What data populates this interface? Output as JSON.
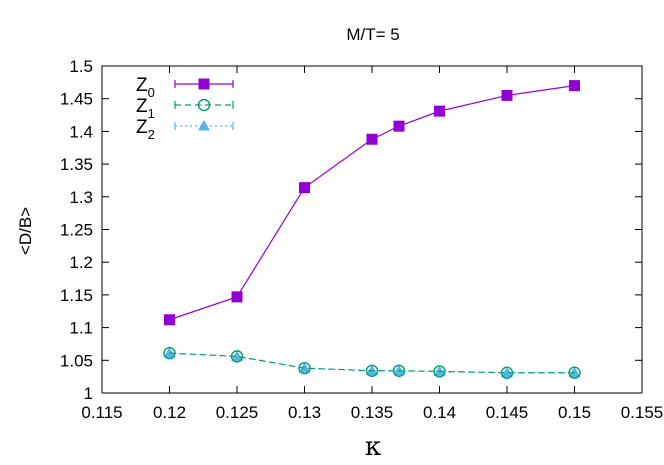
{
  "chart_data": {
    "type": "line",
    "title": "M/T= 5",
    "xlabel": "κ",
    "ylabel": "<D/B>",
    "xlim": [
      0.115,
      0.155
    ],
    "ylim": [
      1.0,
      1.5
    ],
    "x_ticks": [
      "0.115",
      "0.12",
      "0.125",
      "0.13",
      "0.135",
      "0.14",
      "0.145",
      "0.15",
      "0.155"
    ],
    "y_ticks": [
      "1",
      "1.05",
      "1.1",
      "1.15",
      "1.2",
      "1.25",
      "1.3",
      "1.35",
      "1.4",
      "1.45",
      "1.5"
    ],
    "grid": false,
    "legend_position": "top-left",
    "series": [
      {
        "name": "Z",
        "subscript": "0",
        "color": "#9400d3",
        "marker": "filled-square",
        "line_style": "solid",
        "x": [
          0.12,
          0.125,
          0.13,
          0.135,
          0.137,
          0.14,
          0.145,
          0.15
        ],
        "y": [
          1.112,
          1.147,
          1.314,
          1.388,
          1.408,
          1.431,
          1.455,
          1.47
        ]
      },
      {
        "name": "Z",
        "subscript": "1",
        "color": "#009e73",
        "marker": "open-circle",
        "line_style": "dashed",
        "x": [
          0.12,
          0.125,
          0.13,
          0.135,
          0.137,
          0.14,
          0.145,
          0.15
        ],
        "y": [
          1.061,
          1.056,
          1.038,
          1.034,
          1.034,
          1.033,
          1.031,
          1.031
        ]
      },
      {
        "name": "Z",
        "subscript": "2",
        "color": "#56b4e9",
        "marker": "filled-triangle",
        "line_style": "dotted",
        "x": [
          0.12,
          0.125,
          0.13,
          0.135,
          0.137,
          0.14,
          0.145,
          0.15
        ],
        "y": [
          1.061,
          1.056,
          1.038,
          1.034,
          1.034,
          1.033,
          1.031,
          1.031
        ]
      }
    ]
  }
}
